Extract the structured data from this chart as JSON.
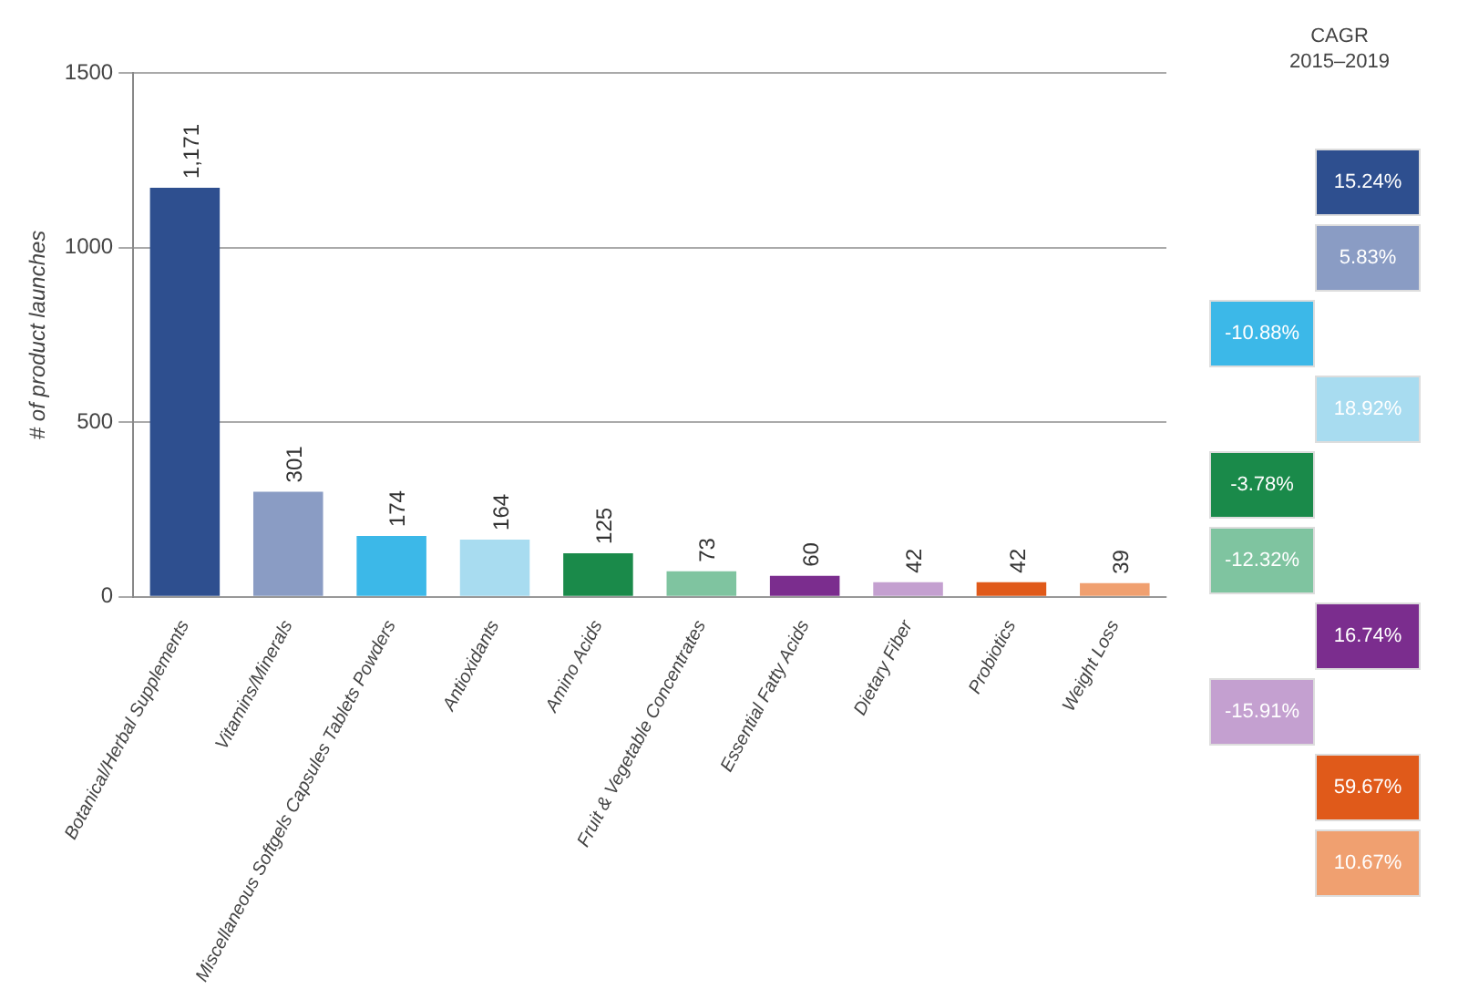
{
  "chart_data": [
    {
      "type": "bar",
      "ylabel": "# of product launches",
      "categories": [
        "Botanical/Herbal Supplements",
        "Vitamins/Minerals",
        "Miscellaneous Softgels Capsules Tablets Powders",
        "Antioxidants",
        "Amino Acids",
        "Fruit & Vegetable Concentrates",
        "Essential Fatty Acids",
        "Dietary Fiber",
        "Probiotics",
        "Weight Loss"
      ],
      "values": [
        1171,
        301,
        174,
        164,
        125,
        73,
        60,
        42,
        42,
        39
      ],
      "value_labels": [
        "1,171",
        "301",
        "174",
        "164",
        "125",
        "73",
        "60",
        "42",
        "42",
        "39"
      ],
      "colors": [
        "#2e4f8f",
        "#8a9cc4",
        "#3cb8e8",
        "#a8dcf0",
        "#1a8a4a",
        "#7fc4a0",
        "#7b2d8e",
        "#c4a0d0",
        "#e05a1a",
        "#f0a070"
      ],
      "ylim": [
        0,
        1500
      ],
      "yticks": [
        0,
        500,
        1000,
        1500
      ],
      "grid": "y",
      "legend": false
    },
    {
      "type": "other",
      "title": "CAGR\n2015–2019",
      "values": [
        15.24,
        5.83,
        -10.88,
        18.92,
        -3.78,
        -12.32,
        16.74,
        -15.91,
        59.67,
        10.67
      ],
      "value_labels": [
        "15.24%",
        "5.83%",
        "-10.88%",
        "18.92%",
        "-3.78%",
        "-12.32%",
        "16.74%",
        "-15.91%",
        "59.67%",
        "10.67%"
      ],
      "colors": [
        "#2e4f8f",
        "#8a9cc4",
        "#3cb8e8",
        "#a8dcf0",
        "#1a8a4a",
        "#7fc4a0",
        "#7b2d8e",
        "#c4a0d0",
        "#e05a1a",
        "#f0a070"
      ]
    }
  ]
}
